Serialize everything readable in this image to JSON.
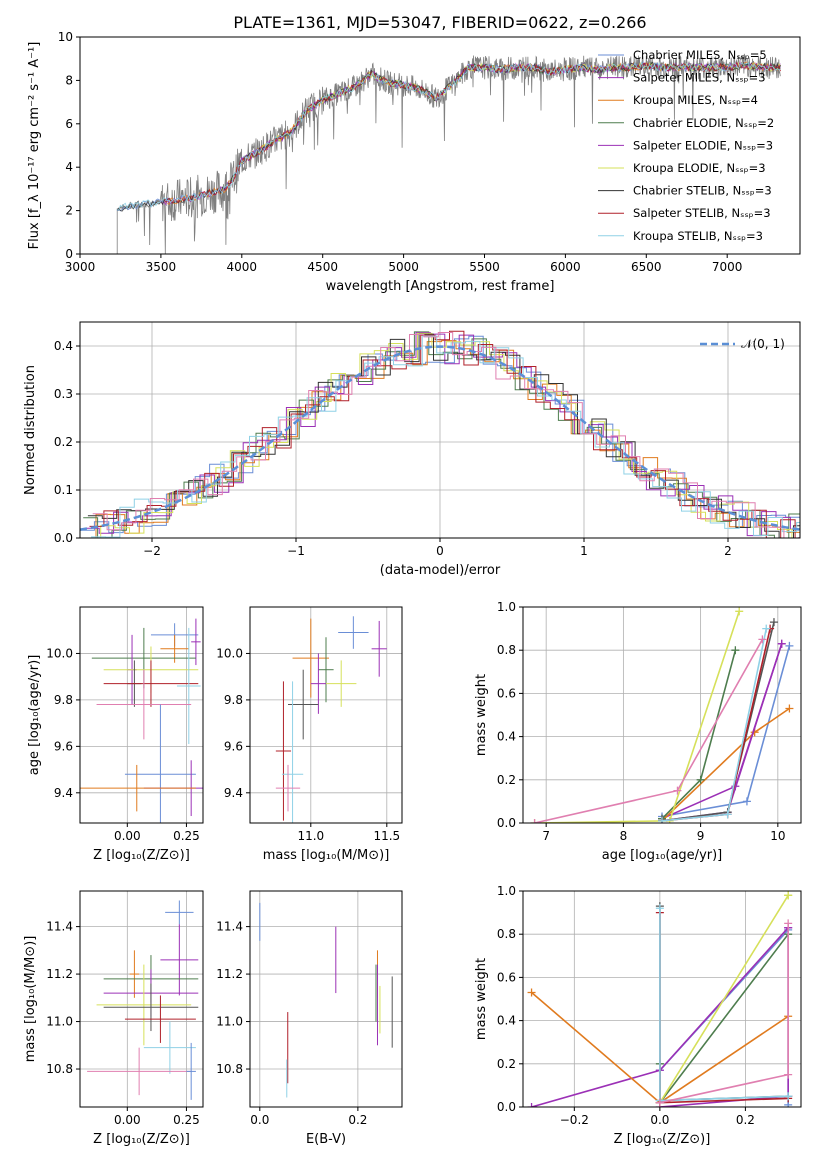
{
  "figure_title": "PLATE=1361, MJD=53047, FIBERID=0622, z=0.266",
  "model_colors": [
    "#6a8ed6",
    "#9b30b6",
    "#e07b1f",
    "#4e7d4e",
    "#9b30b6",
    "#d6e05a",
    "#333333",
    "#b0202a",
    "#8fd1e6"
  ],
  "model_colors_weights": [
    "#6a8ed6",
    "#9b30b6",
    "#e07b1f",
    "#4e7d4e",
    "#9b30b6",
    "#d6e05a",
    "#555555",
    "#b0202a",
    "#8fd1e6",
    "#e07fb0"
  ],
  "chart_data": [
    {
      "id": "spectrum",
      "type": "line",
      "title": "PLATE=1361, MJD=53047, FIBERID=0622, z=0.266",
      "xlabel": "wavelength [Angstrom, rest frame]",
      "ylabel": "Flux [f_λ 10^-17 erg cm^-2 s^-1 A^-1]",
      "xlim": [
        3000,
        7450
      ],
      "ylim": [
        0,
        10
      ],
      "xticks": [
        "3000",
        "3500",
        "4000",
        "4500",
        "5000",
        "5500",
        "6000",
        "6500",
        "7000"
      ],
      "yticks": [
        "0",
        "2",
        "4",
        "6",
        "8",
        "10"
      ],
      "grid": false,
      "legend_position": "top-right",
      "legend": [
        "Chabrier MILES, N_SSP=5",
        "Salpeter MILES, N_SSP=3",
        "Kroupa MILES, N_SSP=4",
        "Chabrier ELODIE, N_SSP=2",
        "Salpeter ELODIE, N_SSP=3",
        "Kroupa ELODIE, N_SSP=3",
        "Chabrier STELIB, N_SSP=3",
        "Salpeter STELIB, N_SSP=3",
        "Kroupa STELIB, N_SSP=3"
      ],
      "continuum": {
        "x": [
          3230,
          3300,
          3400,
          3500,
          3600,
          3700,
          3800,
          3900,
          3950,
          4000,
          4100,
          4200,
          4300,
          4400,
          4500,
          4600,
          4700,
          4800,
          4900,
          5000,
          5100,
          5200,
          5300,
          5400,
          5500,
          5600,
          5700,
          5800,
          5900,
          6000,
          6100,
          6200,
          6300,
          6400,
          6500,
          6600,
          6700,
          6800,
          6900,
          7000,
          7100,
          7200,
          7300
        ],
        "y": [
          2.1,
          2.2,
          2.3,
          2.4,
          2.5,
          2.6,
          2.8,
          3.0,
          3.5,
          4.3,
          4.7,
          5.2,
          5.6,
          6.6,
          7.1,
          7.4,
          7.7,
          8.3,
          7.9,
          7.8,
          7.6,
          7.2,
          7.8,
          8.6,
          8.6,
          8.5,
          8.6,
          8.6,
          8.4,
          8.5,
          8.6,
          8.5,
          8.6,
          8.6,
          8.7,
          8.6,
          8.6,
          8.6,
          8.6,
          8.6,
          8.7,
          8.6,
          8.6
        ]
      },
      "data_wavelength_range": [
        3230,
        7330
      ]
    },
    {
      "id": "residuals",
      "type": "histogram",
      "xlabel": "(data-model)/error",
      "ylabel": "Normed distribution",
      "xlim": [
        -2.5,
        2.5
      ],
      "ylim": [
        0,
        0.45
      ],
      "xticks": [
        "−2",
        "−1",
        "0",
        "1",
        "2"
      ],
      "yticks": [
        "0.0",
        "0.1",
        "0.2",
        "0.3",
        "0.4"
      ],
      "grid": true,
      "legend_position": "top-right",
      "legend": [
        "𝒩(0, 1)"
      ],
      "reference_curve": "N(0,1)"
    },
    {
      "id": "age_vs_Z",
      "type": "scatter",
      "xlabel": "Z [log10(Z/Z⊙)]",
      "ylabel": "age  [log10(age/yr)]",
      "xlim": [
        -0.2,
        0.32
      ],
      "ylim": [
        9.27,
        10.2
      ],
      "xticks": [
        "0.00",
        "0.25"
      ],
      "yticks": [
        "9.4",
        "9.6",
        "9.8",
        "10.0"
      ],
      "grid": true,
      "points": [
        {
          "x": 0.2,
          "y": 10.08,
          "xerr": 0.1,
          "yerr": 0.05
        },
        {
          "x": 0.29,
          "y": 10.05,
          "xerr": 0.02,
          "yerr": 0.1
        },
        {
          "x": 0.2,
          "y": 10.02,
          "xerr": 0.06,
          "yerr": 0.06
        },
        {
          "x": 0.07,
          "y": 9.98,
          "xerr": 0.22,
          "yerr": 0.13
        },
        {
          "x": 0.02,
          "y": 9.93,
          "xerr": 0.02,
          "yerr": 0.15
        },
        {
          "x": 0.1,
          "y": 9.93,
          "xerr": 0.2,
          "yerr": 0.1
        },
        {
          "x": 0.03,
          "y": 9.87,
          "xerr": 0.03,
          "yerr": 0.1
        },
        {
          "x": 0.1,
          "y": 9.87,
          "xerr": 0.2,
          "yerr": 0.1
        },
        {
          "x": 0.26,
          "y": 9.86,
          "xerr": 0.05,
          "yerr": 0.25
        },
        {
          "x": 0.07,
          "y": 9.78,
          "xerr": 0.2,
          "yerr": 0.15
        },
        {
          "x": 0.14,
          "y": 9.48,
          "xerr": 0.15,
          "yerr": 0.3
        },
        {
          "x": 0.27,
          "y": 9.42,
          "xerr": 0.2,
          "yerr": 0.12
        },
        {
          "x": 0.04,
          "y": 9.42,
          "xerr": 0.25,
          "yerr": 0.1
        }
      ]
    },
    {
      "id": "age_vs_mass",
      "type": "scatter",
      "xlabel": "mass [log10(M/M⊙)]",
      "ylabel": "",
      "xlim": [
        10.6,
        11.6
      ],
      "ylim": [
        9.27,
        10.2
      ],
      "xticks": [
        "11.0",
        "11.5"
      ],
      "yticks": [
        "9.4",
        "9.6",
        "9.8",
        "10.0"
      ],
      "grid": true,
      "points": [
        {
          "x": 11.28,
          "y": 10.09,
          "xerr": 0.1,
          "yerr": 0.07
        },
        {
          "x": 11.45,
          "y": 10.02,
          "xerr": 0.05,
          "yerr": 0.12
        },
        {
          "x": 11.0,
          "y": 9.98,
          "xerr": 0.12,
          "yerr": 0.17
        },
        {
          "x": 11.1,
          "y": 9.93,
          "xerr": 0.05,
          "yerr": 0.14
        },
        {
          "x": 11.05,
          "y": 9.87,
          "xerr": 0.05,
          "yerr": 0.13
        },
        {
          "x": 11.2,
          "y": 9.87,
          "xerr": 0.1,
          "yerr": 0.1
        },
        {
          "x": 10.95,
          "y": 9.78,
          "xerr": 0.1,
          "yerr": 0.15
        },
        {
          "x": 10.82,
          "y": 9.58,
          "xerr": 0.05,
          "yerr": 0.3
        },
        {
          "x": 10.88,
          "y": 9.48,
          "xerr": 0.07,
          "yerr": 0.4
        },
        {
          "x": 10.85,
          "y": 9.42,
          "xerr": 0.08,
          "yerr": 0.1
        }
      ]
    },
    {
      "id": "mass_weight_vs_age",
      "type": "line",
      "xlabel": "age  [log10(age/yr)]",
      "ylabel": "mass weight",
      "xlim": [
        6.7,
        10.3
      ],
      "ylim": [
        0,
        1
      ],
      "xticks": [
        "7",
        "8",
        "9",
        "10"
      ],
      "yticks": [
        "0.0",
        "0.2",
        "0.4",
        "0.6",
        "0.8",
        "1.0"
      ],
      "grid": true,
      "series": [
        {
          "x": [
            8.5,
            9.6,
            10.15
          ],
          "y": [
            0.03,
            0.1,
            0.82
          ]
        },
        {
          "x": [
            8.5,
            9.45,
            10.05
          ],
          "y": [
            0.02,
            0.17,
            0.83
          ]
        },
        {
          "x": [
            8.5,
            9.7,
            10.15
          ],
          "y": [
            0.01,
            0.42,
            0.53
          ]
        },
        {
          "x": [
            8.5,
            9.0,
            9.45
          ],
          "y": [
            0.02,
            0.2,
            0.8
          ]
        },
        {
          "x": [
            8.5,
            9.35,
            10.05
          ],
          "y": [
            0.01,
            0.05,
            0.83
          ]
        },
        {
          "x": [
            6.85,
            8.6,
            9.5
          ],
          "y": [
            0.0,
            0.01,
            0.98
          ]
        },
        {
          "x": [
            8.5,
            9.35,
            9.95
          ],
          "y": [
            0.01,
            0.05,
            0.93
          ]
        },
        {
          "x": [
            8.5,
            9.35,
            9.9
          ],
          "y": [
            0.01,
            0.04,
            0.9
          ]
        },
        {
          "x": [
            8.5,
            9.35,
            9.85
          ],
          "y": [
            0.01,
            0.04,
            0.9
          ]
        },
        {
          "x": [
            6.85,
            8.7,
            9.8
          ],
          "y": [
            0.0,
            0.15,
            0.85
          ]
        }
      ]
    },
    {
      "id": "mass_vs_Z",
      "type": "scatter",
      "xlabel": "Z [log10(Z/Z⊙)]",
      "ylabel": "mass [log10(M/M⊙)]",
      "xlim": [
        -0.2,
        0.32
      ],
      "ylim": [
        10.64,
        11.55
      ],
      "xticks": [
        "0.00",
        "0.25"
      ],
      "yticks": [
        "10.8",
        "11.0",
        "11.2",
        "11.4"
      ],
      "grid": true,
      "points": [
        {
          "x": 0.22,
          "y": 11.46,
          "xerr": 0.06,
          "yerr": 0.05
        },
        {
          "x": 0.22,
          "y": 11.26,
          "xerr": 0.08,
          "yerr": 0.15
        },
        {
          "x": 0.03,
          "y": 11.2,
          "xerr": 0.02,
          "yerr": 0.1
        },
        {
          "x": 0.1,
          "y": 11.18,
          "xerr": 0.2,
          "yerr": 0.1
        },
        {
          "x": 0.1,
          "y": 11.12,
          "xerr": 0.2,
          "yerr": 0.1
        },
        {
          "x": 0.07,
          "y": 11.07,
          "xerr": 0.2,
          "yerr": 0.17
        },
        {
          "x": 0.1,
          "y": 11.06,
          "xerr": 0.2,
          "yerr": 0.1
        },
        {
          "x": 0.14,
          "y": 11.01,
          "xerr": 0.15,
          "yerr": 0.1
        },
        {
          "x": 0.18,
          "y": 10.89,
          "xerr": 0.11,
          "yerr": 0.11
        },
        {
          "x": 0.05,
          "y": 10.79,
          "xerr": 0.22,
          "yerr": 0.1
        },
        {
          "x": 0.27,
          "y": 10.79,
          "xerr": 0.02,
          "yerr": 0.12
        }
      ]
    },
    {
      "id": "mass_vs_EBV",
      "type": "scatter",
      "xlabel": "E(B-V)",
      "ylabel": "",
      "xlim": [
        -0.02,
        0.29
      ],
      "ylim": [
        10.64,
        11.55
      ],
      "xticks": [
        "0.0",
        "0.2"
      ],
      "yticks": [
        "10.8",
        "11.0",
        "11.2",
        "11.4"
      ],
      "grid": true,
      "points": [
        {
          "x": 0.0,
          "y": 11.42,
          "xerr": 0,
          "yerr": 0.08
        },
        {
          "x": 0.155,
          "y": 11.26,
          "xerr": 0,
          "yerr": 0.14
        },
        {
          "x": 0.24,
          "y": 11.2,
          "xerr": 0,
          "yerr": 0.1
        },
        {
          "x": 0.237,
          "y": 11.12,
          "xerr": 0,
          "yerr": 0.12
        },
        {
          "x": 0.24,
          "y": 11.07,
          "xerr": 0,
          "yerr": 0.17
        },
        {
          "x": 0.245,
          "y": 11.05,
          "xerr": 0,
          "yerr": 0.1
        },
        {
          "x": 0.27,
          "y": 11.04,
          "xerr": 0,
          "yerr": 0.15
        },
        {
          "x": 0.057,
          "y": 10.89,
          "xerr": 0,
          "yerr": 0.15
        },
        {
          "x": 0.055,
          "y": 10.76,
          "xerr": 0,
          "yerr": 0.08
        }
      ]
    },
    {
      "id": "mass_weight_vs_Z",
      "type": "line",
      "xlabel": "Z [log10(Z/Z⊙)]",
      "ylabel": "mass weight",
      "xlim": [
        -0.32,
        0.33
      ],
      "ylim": [
        0,
        1
      ],
      "xticks": [
        "−0.2",
        "0.0",
        "0.2"
      ],
      "yticks": [
        "0.0",
        "0.2",
        "0.4",
        "0.6",
        "0.8",
        "1.0"
      ],
      "grid": true,
      "series": [
        {
          "x": [
            0.0,
            0.3,
            0.3
          ],
          "y": [
            0.17,
            0.82,
            0.01
          ]
        },
        {
          "x": [
            -0.3,
            0.0,
            0.3
          ],
          "y": [
            0.0,
            0.17,
            0.83
          ]
        },
        {
          "x": [
            -0.3,
            0.0,
            0.3
          ],
          "y": [
            0.53,
            0.02,
            0.42
          ]
        },
        {
          "x": [
            0.0,
            0.0,
            0.3
          ],
          "y": [
            0.2,
            0.02,
            0.8
          ]
        },
        {
          "x": [
            0.0,
            0.3,
            0.3
          ],
          "y": [
            0.0,
            0.05,
            0.83
          ]
        },
        {
          "x": [
            0.0,
            0.3,
            0.3
          ],
          "y": [
            0.02,
            0.98,
            0.98
          ]
        },
        {
          "x": [
            0.0,
            0.0,
            0.3
          ],
          "y": [
            0.93,
            0.03,
            0.05
          ]
        },
        {
          "x": [
            0.0,
            0.0,
            0.3
          ],
          "y": [
            0.9,
            0.02,
            0.04
          ]
        },
        {
          "x": [
            0.0,
            0.0,
            0.3
          ],
          "y": [
            0.92,
            0.03,
            0.05
          ]
        },
        {
          "x": [
            0.0,
            0.3,
            0.3
          ],
          "y": [
            0.02,
            0.15,
            0.85
          ]
        }
      ]
    }
  ]
}
